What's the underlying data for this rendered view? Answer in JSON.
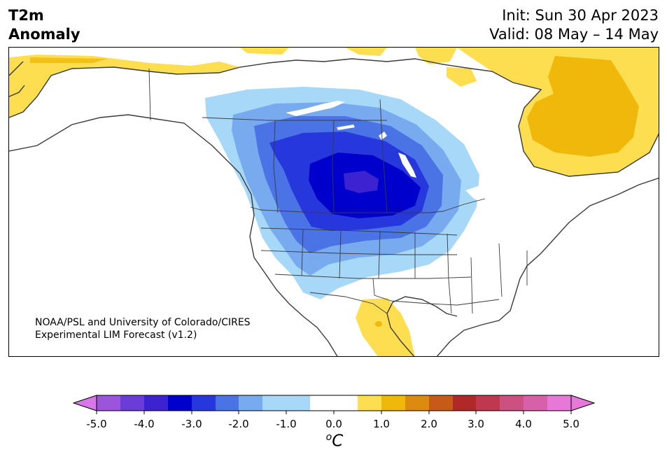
{
  "header": {
    "title_line1": "T2m",
    "title_line2": "Anomaly",
    "init_text": "Init: Sun 30 Apr 2023",
    "valid_text": "Valid: 08 May – 14 May"
  },
  "map": {
    "region": "North America",
    "credit_line1": "NOAA/PSL and University of Colorado/CIRES",
    "credit_line2": "Experimental LIM Forecast (v1.2)"
  },
  "colorbar": {
    "unit_base": "C",
    "unit_prefix": "o",
    "labels": [
      "-5.0",
      "-4.0",
      "-3.0",
      "-2.0",
      "-1.0",
      "0.0",
      "1.0",
      "2.0",
      "3.0",
      "4.0",
      "5.0"
    ],
    "colors": {
      "lt_neg5": "#d878e8",
      "n1": "#9a55dc",
      "n2": "#6a3cd8",
      "n3": "#3c22d0",
      "n4": "#0000cc",
      "n5": "#2638dc",
      "n6": "#4a74e6",
      "n7": "#78aaf0",
      "n8": "#a8d8f8",
      "zero": "#ffffff",
      "p1": "#fcde50",
      "p2": "#f0b80a",
      "p3": "#dc8a10",
      "p4": "#c85a18",
      "p5": "#b02828",
      "p6": "#c03850",
      "p7": "#cc5080",
      "p8": "#d860a8",
      "gt_5": "#e878d8"
    }
  }
}
